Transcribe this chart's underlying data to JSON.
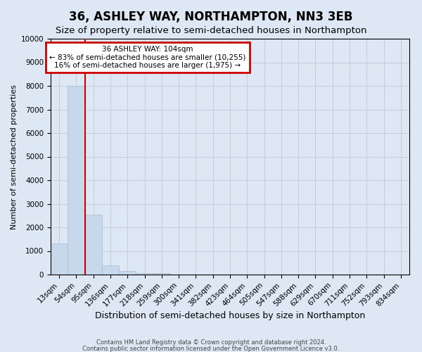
{
  "title": "36, ASHLEY WAY, NORTHAMPTON, NN3 3EB",
  "subtitle": "Size of property relative to semi-detached houses in Northampton",
  "xlabel": "Distribution of semi-detached houses by size in Northampton",
  "ylabel": "Number of semi-detached properties",
  "bar_labels": [
    "13sqm",
    "54sqm",
    "95sqm",
    "136sqm",
    "177sqm",
    "218sqm",
    "259sqm",
    "300sqm",
    "341sqm",
    "382sqm",
    "423sqm",
    "464sqm",
    "505sqm",
    "547sqm",
    "588sqm",
    "629sqm",
    "670sqm",
    "711sqm",
    "752sqm",
    "793sqm",
    "834sqm"
  ],
  "bar_values": [
    1300,
    8000,
    2550,
    400,
    150,
    50,
    50,
    0,
    0,
    0,
    0,
    0,
    0,
    0,
    0,
    0,
    0,
    0,
    0,
    0,
    0
  ],
  "bar_color": "#c8d8ec",
  "bar_edge_color": "#a8bcd0",
  "vline_color": "#cc0000",
  "vline_x": 1.5,
  "annotation_line1": "36 ASHLEY WAY: 104sqm",
  "annotation_line2": "← 83% of semi-detached houses are smaller (10,255)",
  "annotation_line3": "16% of semi-detached houses are larger (1,975) →",
  "annotation_box_color": "#cc0000",
  "annotation_bg_color": "#ffffff",
  "ylim": [
    0,
    10000
  ],
  "yticks": [
    0,
    1000,
    2000,
    3000,
    4000,
    5000,
    6000,
    7000,
    8000,
    9000,
    10000
  ],
  "grid_color": "#c0c8dc",
  "bg_color": "#dde8f4",
  "footer_line1": "Contains HM Land Registry data © Crown copyright and database right 2024.",
  "footer_line2": "Contains public sector information licensed under the Open Government Licence v3.0.",
  "title_fontsize": 12,
  "subtitle_fontsize": 9.5,
  "xlabel_fontsize": 9,
  "ylabel_fontsize": 8,
  "tick_fontsize": 7.5,
  "footer_fontsize": 6
}
